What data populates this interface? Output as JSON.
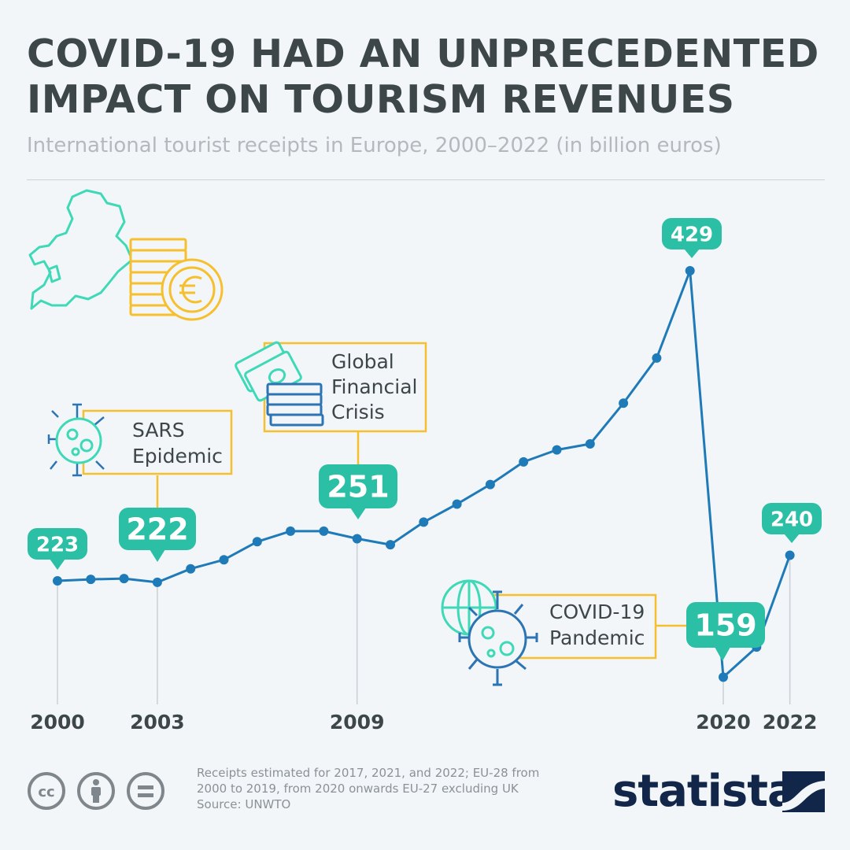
{
  "header": {
    "title_line1": "COVID-19 HAD AN UNPRECEDENTED",
    "title_line2": "IMPACT ON TOURISM REVENUES",
    "subtitle": "International tourist receipts in Europe, 2000–2022 (in billion euros)"
  },
  "colors": {
    "line": "#1f7ab8",
    "bubble": "#2bbfa5",
    "accent": "#f6bf2d",
    "icon_teal": "#3fd9b7",
    "icon_blue": "#2c74b3",
    "text_dark": "#3d4649"
  },
  "chart_data": {
    "type": "line",
    "x": [
      2000,
      2001,
      2002,
      2003,
      2004,
      2005,
      2006,
      2007,
      2008,
      2009,
      2010,
      2011,
      2012,
      2013,
      2014,
      2015,
      2016,
      2017,
      2018,
      2019,
      2020,
      2021,
      2022
    ],
    "values": [
      223,
      224,
      224.5,
      222,
      231,
      237,
      249,
      256,
      256,
      251,
      247,
      262,
      274,
      287,
      302,
      310,
      314,
      341,
      371,
      429,
      159,
      179,
      240
    ],
    "ylim": [
      140,
      440
    ],
    "xticks": [
      "2000",
      "2003",
      "2009",
      "2020",
      "2022"
    ],
    "data_labels": [
      {
        "year": 2000,
        "text": "223"
      },
      {
        "year": 2003,
        "text": "222"
      },
      {
        "year": 2009,
        "text": "251"
      },
      {
        "year": 2019,
        "text": "429"
      },
      {
        "year": 2020,
        "text": "159"
      },
      {
        "year": 2022,
        "text": "240"
      }
    ],
    "annotations": [
      {
        "name": "sars",
        "lines": [
          "SARS",
          "Epidemic"
        ]
      },
      {
        "name": "gfc",
        "lines": [
          "Global",
          "Financial",
          "Crisis"
        ]
      },
      {
        "name": "covid",
        "lines": [
          "COVID-19",
          "Pandemic"
        ]
      }
    ]
  },
  "footer": {
    "note_line1": "Receipts estimated for 2017, 2021, and 2022; EU-28 from",
    "note_line2": "2000 to 2019, from 2020 onwards EU-27 excluding UK",
    "source": "Source: UNWTO",
    "brand": "statista",
    "license_icons": [
      "cc-icon",
      "person-icon",
      "equals-icon"
    ]
  }
}
